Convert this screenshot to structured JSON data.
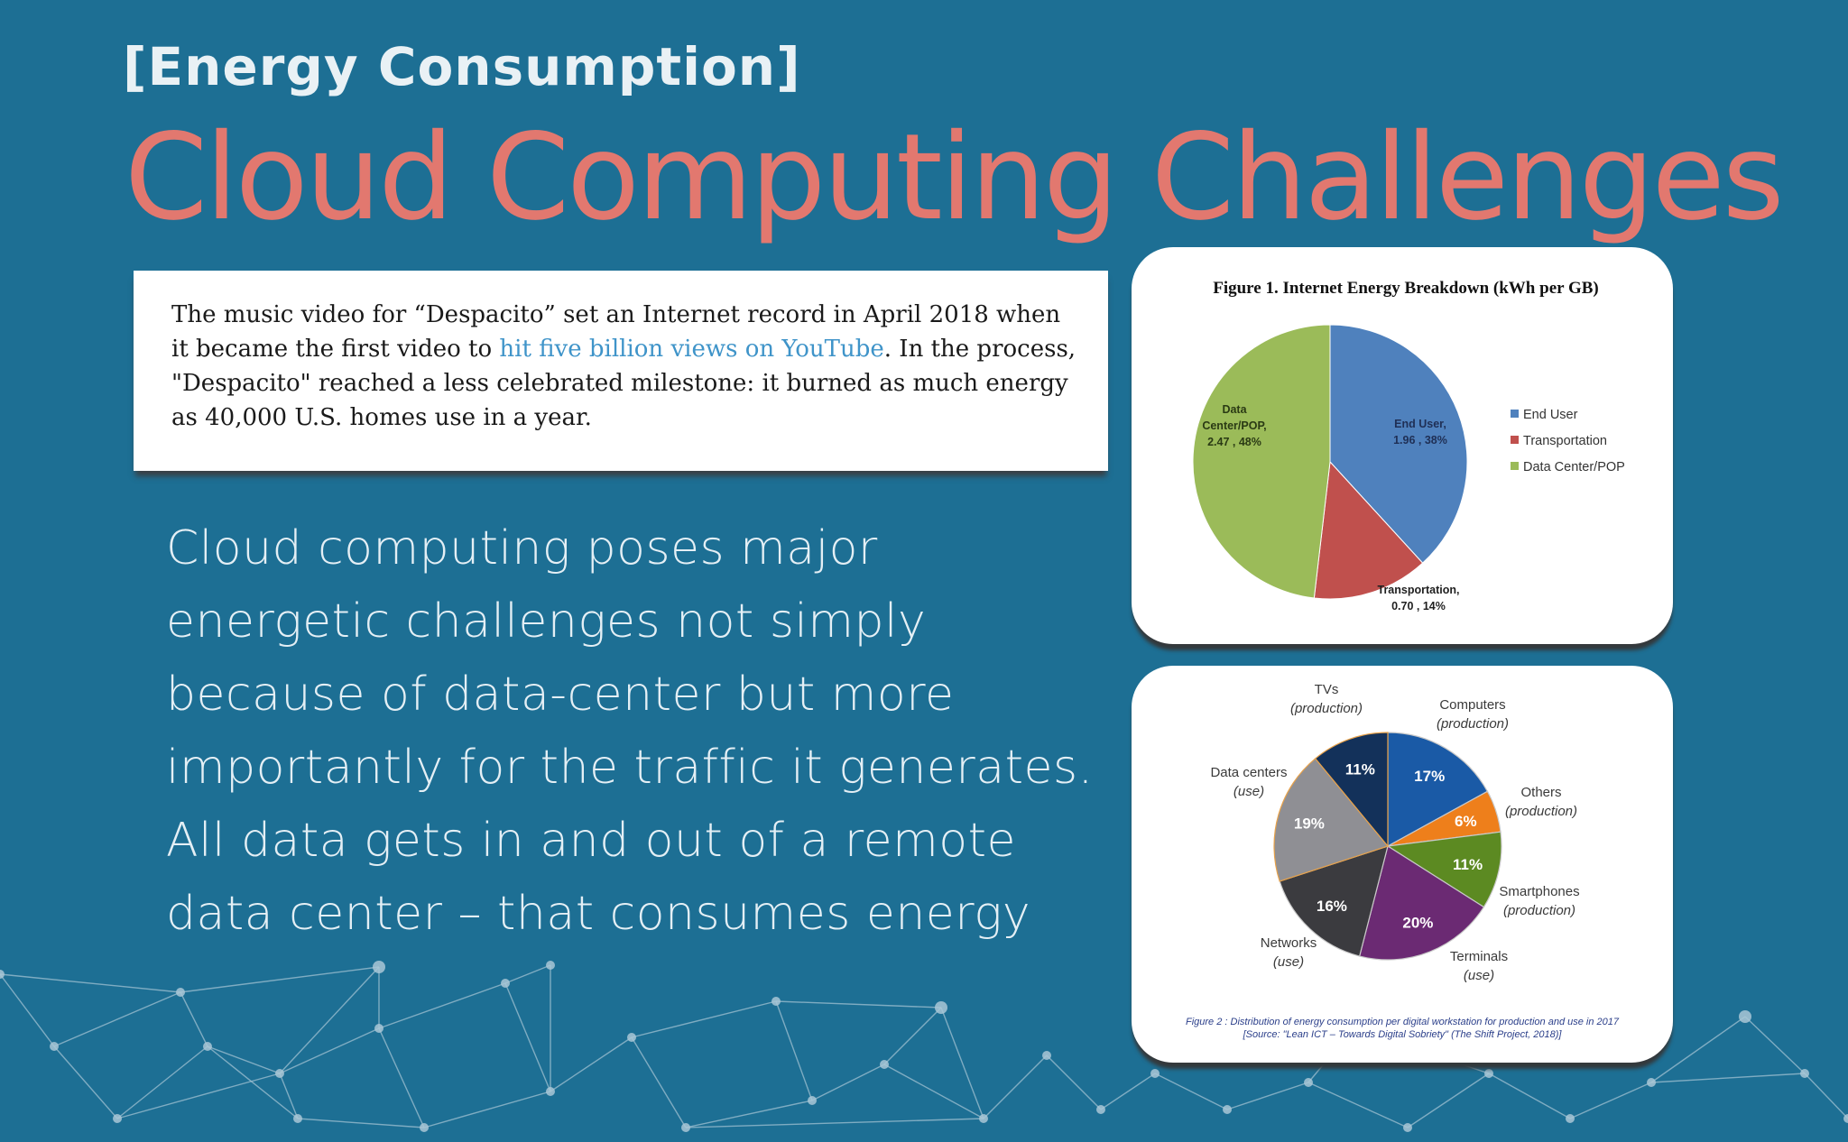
{
  "header": {
    "eyebrow": "[Energy Consumption]",
    "title": "Cloud Computing Challenges"
  },
  "quote": {
    "line_before_link": "The music video for “Despacito” set an Internet record in April 2018 when it became the first video to ",
    "link_text": "hit five billion views on YouTube",
    "line_after_link": ". In the process, \"Despacito\" reached a less celebrated milestone: it burned as much energy as 40,000 U.S. homes use in a year."
  },
  "body_text": "Cloud computing poses major energetic challenges not simply because of data-center but more importantly for the traffic it generates. All data gets in and out of a remote data center – that consumes energy",
  "colors": {
    "background": "#1d6f94",
    "title": "#e2786f",
    "link": "#3f94c9",
    "network_lines": "#a9c7d6"
  },
  "chart_data": [
    {
      "type": "pie",
      "title": "Figure 1. Internet Energy Breakdown (kWh per GB)",
      "legend_position": "right",
      "slices": [
        {
          "name": "End User",
          "value": 1.96,
          "percent": 38,
          "color": "#4f81bd",
          "label_lines": [
            "End User,",
            "1.96 , 38%"
          ]
        },
        {
          "name": "Transportation",
          "value": 0.7,
          "percent": 14,
          "color": "#c0504d",
          "label_lines": [
            "Transportation,",
            "0.70 , 14%"
          ]
        },
        {
          "name": "Data Center/POP",
          "value": 2.47,
          "percent": 48,
          "color": "#9bbb59",
          "label_lines": [
            "Data",
            "Center/POP,",
            "2.47 , 48%"
          ]
        }
      ],
      "legend": [
        "End User",
        "Transportation",
        "Data Center/POP"
      ]
    },
    {
      "type": "pie",
      "caption": [
        "Figure 2 : Distribution of energy consumption per digital workstation for production and use in 2017",
        "[Source: \"Lean ICT – Towards Digital Sobriety\" (The Shift Project, 2018)]"
      ],
      "slices": [
        {
          "name": "Computers",
          "sub": "(production)",
          "percent": 17,
          "label": "17%",
          "color": "#1a5aa6"
        },
        {
          "name": "Others",
          "sub": "(production)",
          "percent": 6,
          "label": "6%",
          "color": "#ee7f1b"
        },
        {
          "name": "Smartphones",
          "sub": "(production)",
          "percent": 11,
          "label": "11%",
          "color": "#5c8a22"
        },
        {
          "name": "Terminals",
          "sub": "(use)",
          "percent": 20,
          "label": "20%",
          "color": "#6b2a73"
        },
        {
          "name": "Networks",
          "sub": "(use)",
          "percent": 16,
          "label": "16%",
          "color": "#3b3b3f"
        },
        {
          "name": "Data centers",
          "sub": "(use)",
          "percent": 19,
          "label": "19%",
          "color": "#8f8f94"
        },
        {
          "name": "TVs",
          "sub": "(production)",
          "percent": 11,
          "label": "11%",
          "color": "#13315a"
        }
      ]
    }
  ]
}
